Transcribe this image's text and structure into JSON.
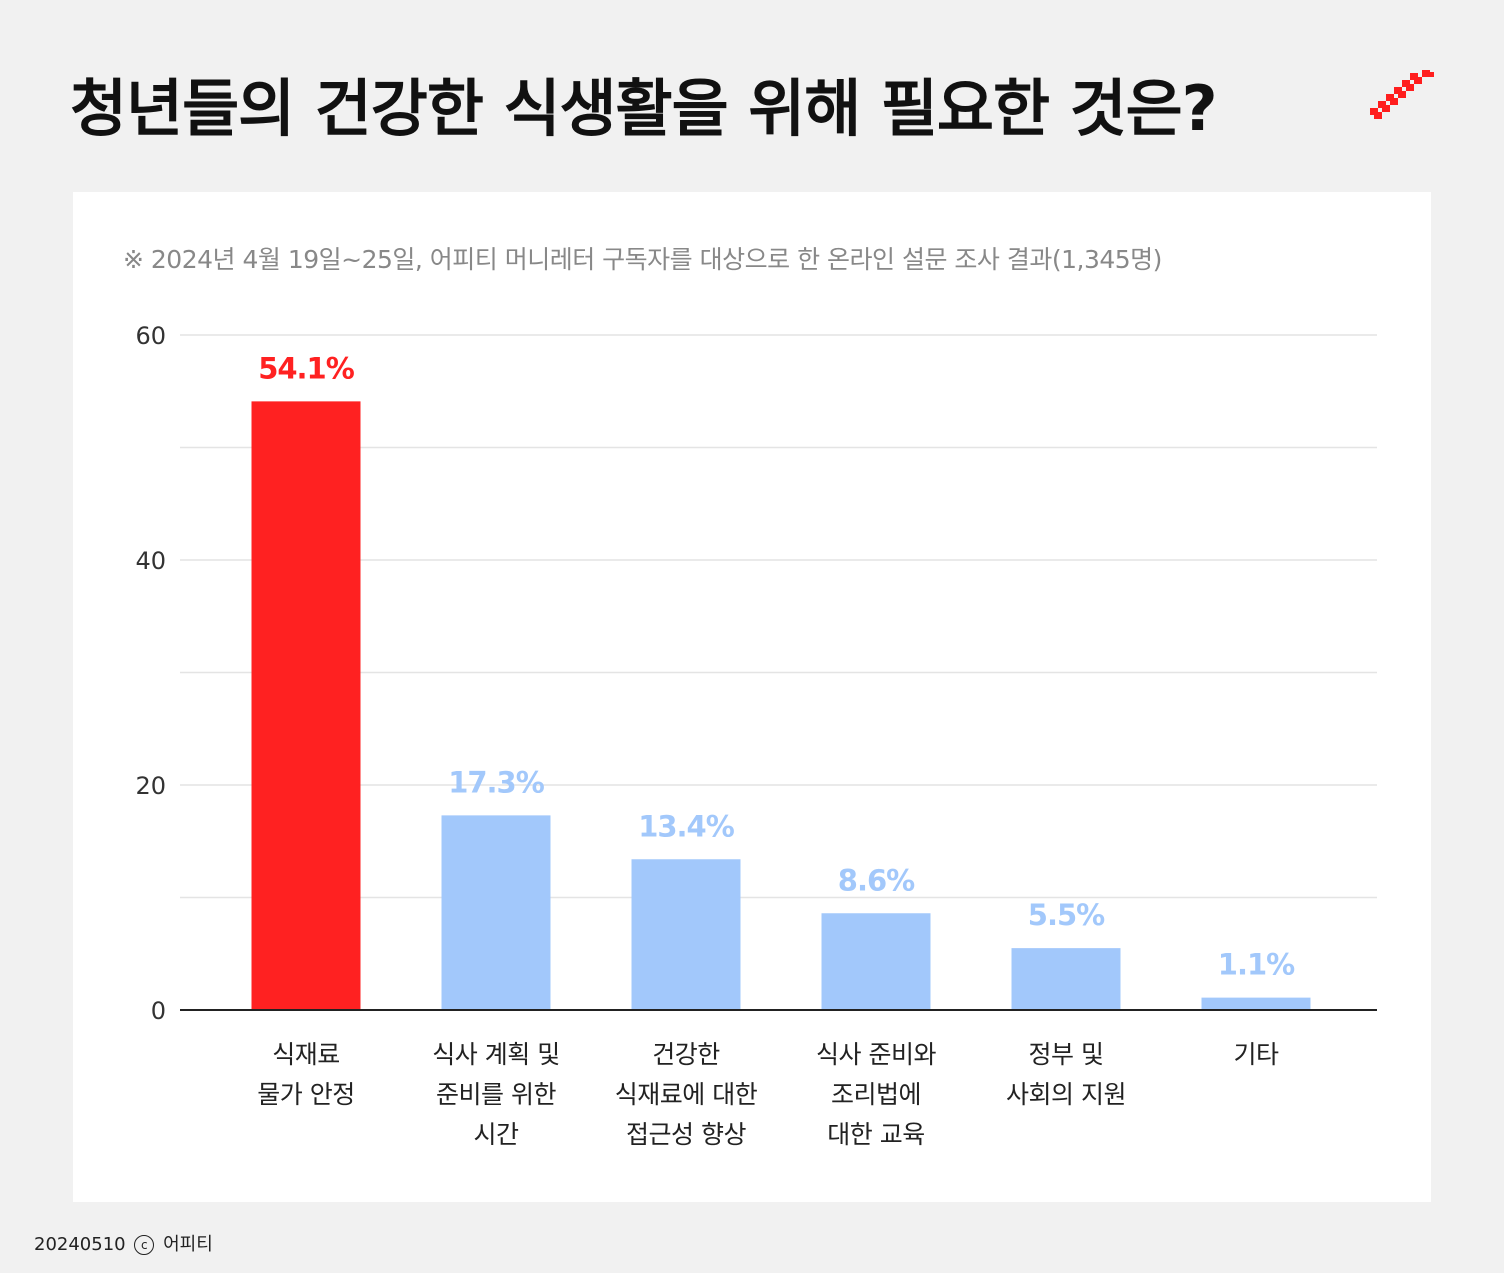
{
  "title": "청년들의 건강한 식생활을 위해 필요한 것은?",
  "note": "※ 2024년 4월 19일~25일, 어피티 머니레터 구독자를 대상으로 한 온라인 설문 조사 결과(1,345명)",
  "footer": {
    "date": "20240510",
    "copyright_symbol": "c",
    "brand": "어피티"
  },
  "colors": {
    "highlight": "#ff2121",
    "bar": "#a2c8fb",
    "brand_red": "#ff1e1e"
  },
  "chart_data": {
    "type": "bar",
    "title": "청년들의 건강한 식생활을 위해 필요한 것은?",
    "categories": [
      [
        "식재료",
        "물가 안정"
      ],
      [
        "식사 계획 및",
        "준비를 위한",
        "시간"
      ],
      [
        "건강한",
        "식재료에 대한",
        "접근성 향상"
      ],
      [
        "식사 준비와",
        "조리법에",
        "대한 교육"
      ],
      [
        "정부 및",
        "사회의 지원"
      ],
      [
        "기타"
      ]
    ],
    "values": [
      54.1,
      17.3,
      13.4,
      8.6,
      5.5,
      1.1
    ],
    "value_labels": [
      "54.1%",
      "17.3%",
      "13.4%",
      "8.6%",
      "5.5%",
      "1.1%"
    ],
    "highlight_index": 0,
    "ylim": [
      0,
      60
    ],
    "yticks": [
      0,
      20,
      40,
      60
    ],
    "grid": true,
    "xlabel": "",
    "ylabel": ""
  }
}
